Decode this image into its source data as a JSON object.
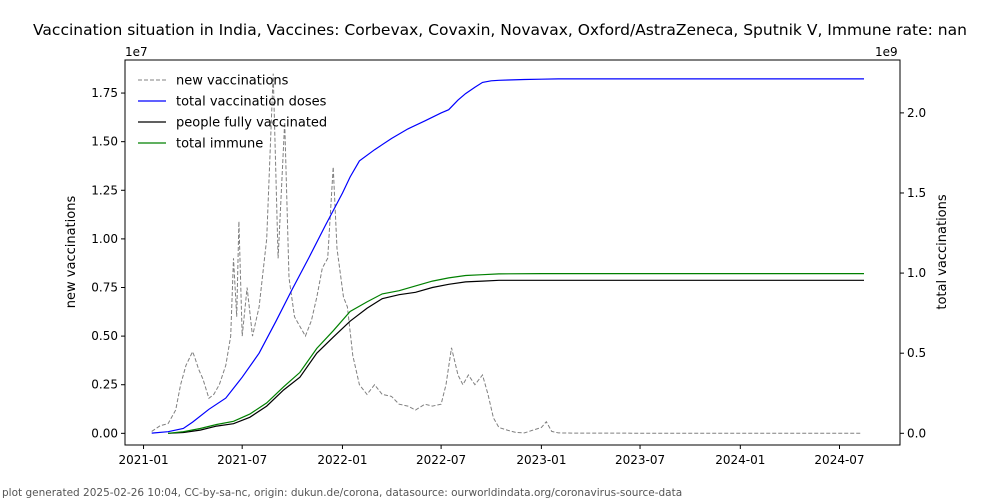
{
  "chart_data": {
    "type": "line",
    "title": "Vaccination situation in India, Vaccines: Corbevax, Covaxin, Novavax, Oxford/AstraZeneca, Sputnik V, Immune rate: nan",
    "ylabel_left": "new vaccinations",
    "ylabel_right": "total vaccinations",
    "left_offset_label": "1e7",
    "right_offset_label": "1e9",
    "x_ticks": [
      "2021-01",
      "2021-07",
      "2022-01",
      "2022-07",
      "2023-01",
      "2023-07",
      "2024-01",
      "2024-07"
    ],
    "xlim": [
      "2020-11-28",
      "2024-10-20"
    ],
    "y_left_ticks": [
      "0.00",
      "0.25",
      "0.50",
      "0.75",
      "1.00",
      "1.25",
      "1.50",
      "1.75"
    ],
    "y_left_lim": [
      -600000,
      19200000
    ],
    "y_right_ticks": [
      "0.0",
      "0.5",
      "1.0",
      "1.5",
      "2.0"
    ],
    "y_right_lim": [
      -73000000,
      2330000000
    ],
    "grid": false,
    "legend_placement": "top-left",
    "series": [
      {
        "name": "new vaccinations",
        "axis": "left",
        "style": "dashed",
        "color": "#808080",
        "x": [
          "2021-01-16",
          "2021-02-01",
          "2021-02-15",
          "2021-03-01",
          "2021-03-10",
          "2021-03-20",
          "2021-04-01",
          "2021-04-05",
          "2021-04-12",
          "2021-04-20",
          "2021-05-01",
          "2021-05-10",
          "2021-05-20",
          "2021-06-01",
          "2021-06-10",
          "2021-06-15",
          "2021-06-21",
          "2021-06-25",
          "2021-07-01",
          "2021-07-10",
          "2021-07-20",
          "2021-08-01",
          "2021-08-15",
          "2021-08-27",
          "2021-09-05",
          "2021-09-17",
          "2021-09-25",
          "2021-10-05",
          "2021-10-15",
          "2021-10-25",
          "2021-11-05",
          "2021-11-15",
          "2021-11-25",
          "2021-12-05",
          "2021-12-15",
          "2021-12-22",
          "2022-01-03",
          "2022-01-10",
          "2022-01-20",
          "2022-02-01",
          "2022-02-15",
          "2022-03-01",
          "2022-03-15",
          "2022-04-01",
          "2022-04-15",
          "2022-05-01",
          "2022-05-15",
          "2022-06-01",
          "2022-06-15",
          "2022-07-01",
          "2022-07-10",
          "2022-07-20",
          "2022-08-01",
          "2022-08-10",
          "2022-08-20",
          "2022-09-01",
          "2022-09-15",
          "2022-09-25",
          "2022-10-05",
          "2022-10-15",
          "2022-11-01",
          "2022-11-15",
          "2022-12-01",
          "2022-12-15",
          "2023-01-01",
          "2023-01-10",
          "2023-01-20",
          "2023-02-01",
          "2023-03-01",
          "2023-07-01",
          "2024-01-01",
          "2024-08-10"
        ],
        "values": [
          100000,
          400000,
          500000,
          1200000,
          2500000,
          3500000,
          4200000,
          3900000,
          3300000,
          2800000,
          1800000,
          2000000,
          2500000,
          3500000,
          5000000,
          9000000,
          6000000,
          10900000,
          5000000,
          7500000,
          5000000,
          6500000,
          10000000,
          18500000,
          9000000,
          16000000,
          8000000,
          6000000,
          5500000,
          5000000,
          5800000,
          7000000,
          8500000,
          9000000,
          13700000,
          9500000,
          7000000,
          6500000,
          4000000,
          2500000,
          2000000,
          2500000,
          2000000,
          1900000,
          1500000,
          1400000,
          1200000,
          1500000,
          1400000,
          1500000,
          2500000,
          4400000,
          3000000,
          2500000,
          3000000,
          2500000,
          3000000,
          2000000,
          800000,
          300000,
          150000,
          50000,
          20000,
          150000,
          300000,
          600000,
          100000,
          20000,
          10000,
          5000,
          2000,
          1000
        ]
      },
      {
        "name": "total vaccination doses",
        "axis": "right",
        "style": "solid",
        "color": "#0000ff",
        "x": [
          "2021-01-16",
          "2021-02-15",
          "2021-03-15",
          "2021-04-01",
          "2021-05-01",
          "2021-06-01",
          "2021-07-01",
          "2021-08-01",
          "2021-09-01",
          "2021-10-01",
          "2021-11-01",
          "2021-12-01",
          "2022-01-01",
          "2022-01-15",
          "2022-02-01",
          "2022-03-01",
          "2022-04-01",
          "2022-05-01",
          "2022-06-01",
          "2022-07-01",
          "2022-07-15",
          "2022-08-01",
          "2022-08-15",
          "2022-09-01",
          "2022-09-15",
          "2022-10-01",
          "2022-10-15",
          "2022-11-01",
          "2022-12-01",
          "2023-01-01",
          "2023-02-01",
          "2023-06-01",
          "2024-01-01",
          "2024-08-15"
        ],
        "values": [
          1000000,
          10000000,
          30000000,
          70000000,
          150000000,
          220000000,
          350000000,
          500000000,
          700000000,
          900000000,
          1100000000,
          1300000000,
          1500000000,
          1600000000,
          1700000000,
          1770000000,
          1840000000,
          1900000000,
          1950000000,
          2000000000,
          2020000000,
          2080000000,
          2120000000,
          2160000000,
          2190000000,
          2200000000,
          2203000000,
          2205000000,
          2208000000,
          2210000000,
          2212000000,
          2212000000,
          2212000000,
          2212000000
        ]
      },
      {
        "name": "people fully vaccinated",
        "axis": "right",
        "style": "solid",
        "color": "#000000",
        "x": [
          "2021-02-15",
          "2021-03-15",
          "2021-04-15",
          "2021-05-15",
          "2021-06-15",
          "2021-07-15",
          "2021-08-15",
          "2021-09-15",
          "2021-10-15",
          "2021-11-15",
          "2021-12-15",
          "2022-01-15",
          "2022-02-15",
          "2022-03-15",
          "2022-04-15",
          "2022-05-15",
          "2022-06-15",
          "2022-07-15",
          "2022-08-15",
          "2022-09-15",
          "2022-10-15",
          "2023-01-01",
          "2024-08-15"
        ],
        "values": [
          0,
          5000000,
          20000000,
          45000000,
          60000000,
          100000000,
          170000000,
          270000000,
          350000000,
          500000000,
          600000000,
          700000000,
          780000000,
          840000000,
          865000000,
          880000000,
          910000000,
          930000000,
          945000000,
          950000000,
          955000000,
          955000000,
          955000000
        ]
      },
      {
        "name": "total immune",
        "axis": "right",
        "style": "solid",
        "color": "#008000",
        "x": [
          "2021-02-15",
          "2021-03-15",
          "2021-04-15",
          "2021-05-15",
          "2021-06-15",
          "2021-07-15",
          "2021-08-15",
          "2021-09-15",
          "2021-10-15",
          "2021-11-15",
          "2021-12-15",
          "2022-01-15",
          "2022-02-15",
          "2022-03-15",
          "2022-04-15",
          "2022-05-15",
          "2022-06-15",
          "2022-07-15",
          "2022-08-15",
          "2022-09-15",
          "2022-10-15",
          "2023-01-01",
          "2024-08-15"
        ],
        "values": [
          0,
          10000000,
          30000000,
          55000000,
          75000000,
          120000000,
          190000000,
          290000000,
          380000000,
          530000000,
          640000000,
          760000000,
          820000000,
          870000000,
          890000000,
          920000000,
          950000000,
          970000000,
          985000000,
          990000000,
          995000000,
          997000000,
          997000000
        ]
      }
    ]
  },
  "footer": "plot generated 2025-02-26 10:04, CC-by-sa-nc, origin: dukun.de/corona, datasource: ourworldindata.org/coronavirus-source-data"
}
